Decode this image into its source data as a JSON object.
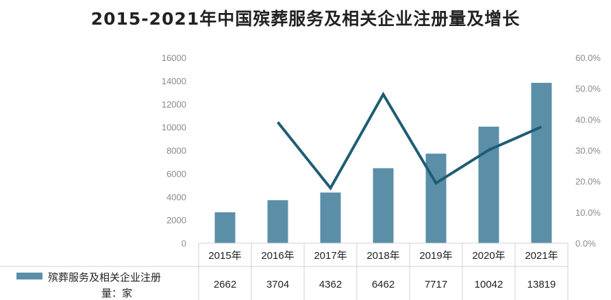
{
  "chart_data": {
    "type": "bar+line",
    "title": "2015-2021年中国殡葬服务及相关企业注册量及增长",
    "categories": [
      "2015年",
      "2016年",
      "2017年",
      "2018年",
      "2019年",
      "2020年",
      "2021年"
    ],
    "series": [
      {
        "name": "殡葬服务及相关企业注册量：家",
        "type": "bar",
        "axis": "left",
        "values": [
          2662,
          3704,
          4362,
          6462,
          7717,
          10042,
          13819
        ]
      },
      {
        "type": "line",
        "axis": "right",
        "values": [
          null,
          0.391,
          0.178,
          0.481,
          0.194,
          0.301,
          0.376
        ]
      }
    ],
    "left_axis": {
      "range": [
        0,
        16000
      ],
      "ticks": [
        "0",
        "2000",
        "4000",
        "6000",
        "8000",
        "10000",
        "12000",
        "14000",
        "16000"
      ]
    },
    "right_axis": {
      "range": [
        0,
        0.6
      ],
      "ticks": [
        "0.0%",
        "10.0%",
        "20.0%",
        "30.0%",
        "40.0%",
        "50.0%",
        "60.0%"
      ]
    },
    "table_values": [
      "2662",
      "3704",
      "4362",
      "6462",
      "7717",
      "10042",
      "13819"
    ],
    "grid": false,
    "legend": "data-table",
    "colors": {
      "bar": "#5b8fa8",
      "line": "#1e5d75"
    }
  }
}
